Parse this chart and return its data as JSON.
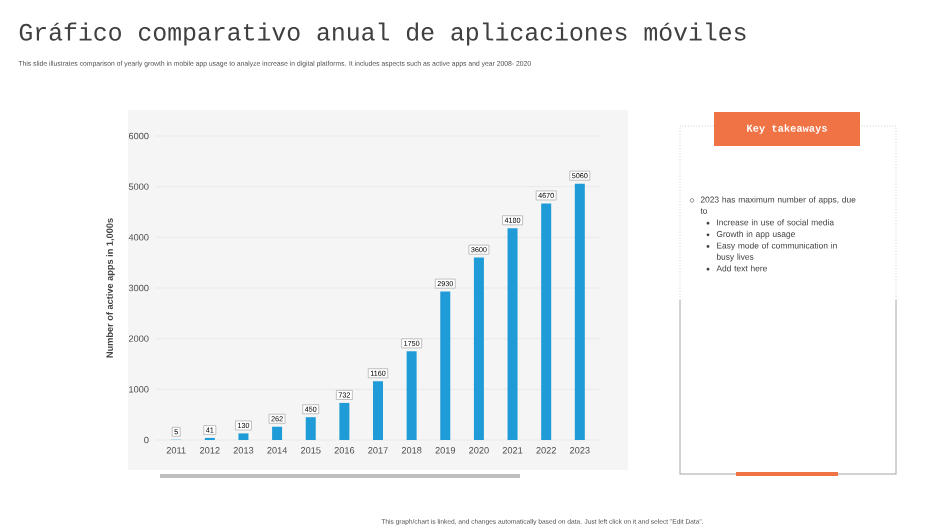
{
  "chart_data": {
    "type": "bar",
    "title": "Gráfico comparativo anual de aplicaciones móviles",
    "subtitle": "This slide illustrates comparison of yearly growth in mobile app usage to analyze increase in digital platforms. It includes aspects such as active apps and year 2008- 2020",
    "ylabel": "Number of active apps in 1,000s",
    "categories": [
      "2011",
      "2012",
      "2013",
      "2014",
      "2015",
      "2016",
      "2017",
      "2018",
      "2019",
      "2020",
      "2021",
      "2022",
      "2023"
    ],
    "values": [
      5,
      41,
      130,
      262,
      450,
      732,
      1160,
      1750,
      2930,
      3600,
      4180,
      4670,
      5060
    ],
    "color": "#1f9bd7",
    "ylim": [
      0,
      6000
    ],
    "yticks": [
      0,
      1000,
      2000,
      3000,
      4000,
      5000,
      6000
    ],
    "grid": "y",
    "data_labels": true,
    "annotations": [
      "Key takeaways",
      "2023 has maximum number of apps, due to",
      "Increase in use of social media",
      "Growth in app usage",
      "Easy mode of communication in busy lives",
      "Add text here",
      "This graph/chart is linked, and changes automatically based on data. Just left click on it and select \"Edit Data\"."
    ]
  }
}
